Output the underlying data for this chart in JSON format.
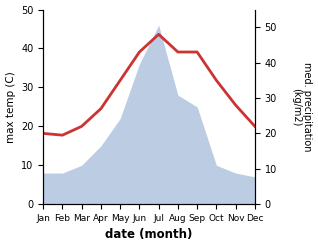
{
  "months": [
    "Jan",
    "Feb",
    "Mar",
    "Apr",
    "May",
    "Jun",
    "Jul",
    "Aug",
    "Sep",
    "Oct",
    "Nov",
    "Dec"
  ],
  "month_positions": [
    1,
    2,
    3,
    4,
    5,
    6,
    7,
    8,
    9,
    10,
    11,
    12
  ],
  "temperature": [
    20.0,
    19.5,
    22.0,
    27.0,
    35.0,
    43.0,
    48.0,
    43.0,
    43.0,
    35.0,
    28.0,
    22.0
  ],
  "precipitation": [
    8,
    8,
    10,
    15,
    22,
    36,
    46,
    28,
    25,
    10,
    8,
    7
  ],
  "temp_color": "#cc3333",
  "precip_color": "#b0c4de",
  "ylabel_left": "max temp (C)",
  "ylabel_right": "med. precipitation\n(kg/m2)",
  "xlabel": "date (month)",
  "ylim_left": [
    0,
    50
  ],
  "ylim_right": [
    0,
    55
  ],
  "yticks_left": [
    0,
    10,
    20,
    30,
    40,
    50
  ],
  "yticks_right": [
    0,
    10,
    20,
    30,
    40,
    50
  ],
  "line_width": 2.0,
  "figsize": [
    3.18,
    2.47
  ],
  "dpi": 100
}
